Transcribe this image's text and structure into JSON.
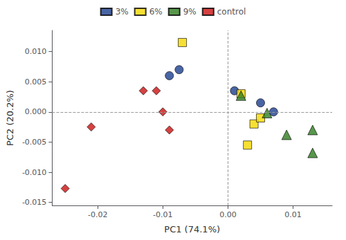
{
  "chart_data": {
    "type": "scatter",
    "xlabel": "PC1 (74.1%)",
    "ylabel": "PC2 (20.2%)",
    "xlim": [
      -0.027,
      0.016
    ],
    "ylim": [
      -0.0155,
      0.0135
    ],
    "xticks": [
      -0.02,
      -0.01,
      {
        "value": 0.0,
        "label": "0.00"
      },
      0.01
    ],
    "yticks": [
      -0.015,
      {
        "value": -0.01,
        "label": "-0.010"
      },
      -0.005,
      {
        "value": 0.0,
        "label": "0.000"
      },
      0.005,
      {
        "value": 0.01,
        "label": "0.010"
      }
    ],
    "grid": false,
    "legend": "top",
    "reference_lines": [
      {
        "axis": "y",
        "value": 0.0,
        "color": "#999999",
        "line_style": "dashed"
      },
      {
        "axis": "x",
        "value": 0.0,
        "color": "#999999",
        "line_style": "dashed"
      }
    ],
    "series": [
      {
        "name": "3%",
        "color": "#1c3f8f",
        "marker": "circle",
        "x": [
          -0.009,
          -0.0075,
          0.001,
          0.005,
          0.007
        ],
        "y": [
          0.006,
          0.007,
          0.0035,
          0.0015,
          0.0
        ]
      },
      {
        "name": "6%",
        "color": "#f5d800",
        "marker": "square",
        "x": [
          -0.007,
          0.002,
          0.004,
          0.003,
          0.005
        ],
        "y": [
          0.0115,
          0.003,
          -0.002,
          -0.0055,
          -0.001
        ]
      },
      {
        "name": "9%",
        "color": "#2e7d1e",
        "marker": "triangle",
        "x": [
          0.002,
          0.006,
          0.009,
          0.013,
          0.013
        ],
        "y": [
          0.0027,
          -0.0002,
          -0.0038,
          -0.003,
          -0.0068
        ]
      },
      {
        "name": "control",
        "color": "#cc1111",
        "marker": "diamond",
        "x": [
          -0.025,
          -0.021,
          -0.013,
          -0.011,
          -0.01,
          -0.009
        ],
        "y": [
          -0.0127,
          -0.0025,
          0.0035,
          0.0035,
          0.0,
          -0.003
        ]
      }
    ]
  }
}
